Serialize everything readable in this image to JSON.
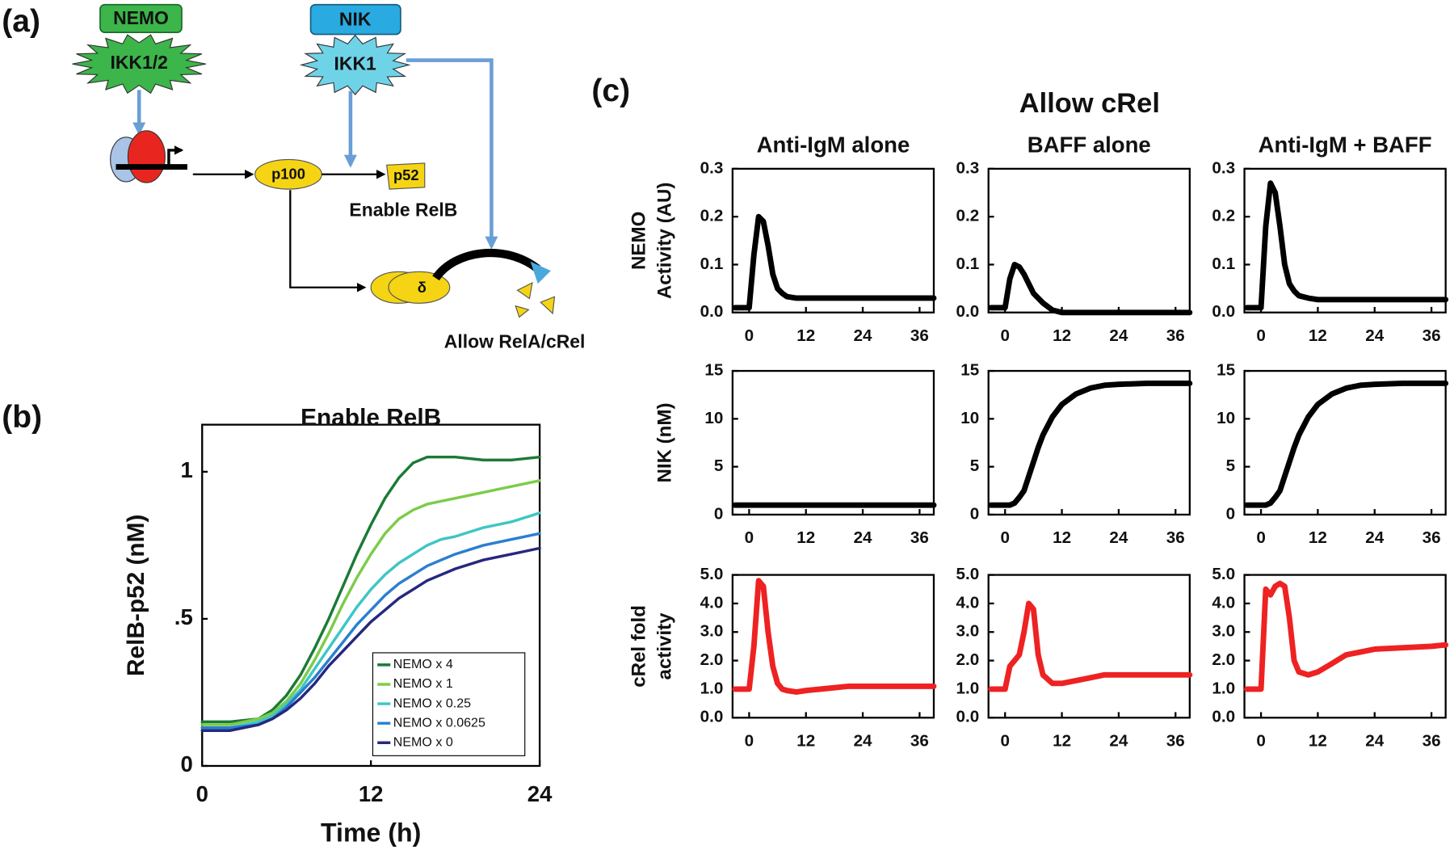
{
  "figure": {
    "panel_labels": [
      "(a)",
      "(b)",
      "(c)"
    ],
    "suptitle": "Allow cRel"
  },
  "diagram": {
    "labels": {
      "nemo": "NEMO",
      "ikk12": "IKK1/2",
      "nik": "NIK",
      "ikk1": "IKK1",
      "p100": "p100",
      "p52": "p52",
      "enable": "Enable RelB",
      "delta": "δ",
      "allow": "Allow RelA/cRel"
    }
  },
  "chart_data": [
    {
      "type": "line",
      "title": "Enable RelB",
      "xlabel": "Time (h)",
      "ylabel": "RelB-p52 (nM)",
      "legend": "lower right",
      "x": [
        0,
        2,
        4,
        5,
        6,
        7,
        8,
        9,
        10,
        11,
        12,
        13,
        14,
        15,
        16,
        17,
        18,
        20,
        22,
        24
      ],
      "xlim": [
        0,
        24
      ],
      "xticks": [
        0,
        12,
        24
      ],
      "ylim": [
        0,
        1.16
      ],
      "yticks": [
        0,
        {
          "value": 0.5,
          "label": ".5"
        },
        1
      ],
      "series": [
        {
          "name": "NEMO x 4",
          "color": "#1b7a35",
          "values": [
            0.15,
            0.15,
            0.16,
            0.19,
            0.24,
            0.31,
            0.4,
            0.5,
            0.61,
            0.72,
            0.82,
            0.91,
            0.98,
            1.03,
            1.05,
            1.05,
            1.05,
            1.04,
            1.04,
            1.05
          ]
        },
        {
          "name": "NEMO x 1",
          "color": "#7ccc4a",
          "values": [
            0.14,
            0.14,
            0.16,
            0.18,
            0.22,
            0.28,
            0.36,
            0.45,
            0.55,
            0.64,
            0.72,
            0.79,
            0.84,
            0.87,
            0.89,
            0.9,
            0.91,
            0.93,
            0.95,
            0.97
          ]
        },
        {
          "name": "NEMO x 0.25",
          "color": "#3ec6c6",
          "values": [
            0.13,
            0.13,
            0.15,
            0.17,
            0.21,
            0.26,
            0.33,
            0.4,
            0.47,
            0.54,
            0.6,
            0.65,
            0.69,
            0.72,
            0.75,
            0.77,
            0.78,
            0.81,
            0.83,
            0.86
          ]
        },
        {
          "name": "NEMO x 0.0625",
          "color": "#2a7fd0",
          "values": [
            0.13,
            0.13,
            0.14,
            0.16,
            0.2,
            0.25,
            0.3,
            0.36,
            0.42,
            0.48,
            0.53,
            0.58,
            0.62,
            0.65,
            0.68,
            0.7,
            0.72,
            0.75,
            0.77,
            0.79
          ]
        },
        {
          "name": "NEMO x 0",
          "color": "#26287e",
          "values": [
            0.12,
            0.12,
            0.14,
            0.16,
            0.19,
            0.23,
            0.28,
            0.34,
            0.39,
            0.44,
            0.49,
            0.53,
            0.57,
            0.6,
            0.63,
            0.65,
            0.67,
            0.7,
            0.72,
            0.74
          ]
        }
      ]
    },
    {
      "type": "line",
      "title": "Anti-IgM alone",
      "ylabel": [
        "NEMO",
        "Activity (AU)"
      ],
      "color": "#000000",
      "x": [
        -3,
        0,
        1,
        2,
        3,
        4,
        5,
        6,
        7,
        8,
        10,
        12,
        15,
        18,
        21,
        24,
        30,
        36,
        39
      ],
      "values": [
        0.01,
        0.01,
        0.12,
        0.2,
        0.19,
        0.14,
        0.08,
        0.05,
        0.04,
        0.033,
        0.03,
        0.03,
        0.03,
        0.03,
        0.03,
        0.03,
        0.03,
        0.03,
        0.03
      ],
      "xlim": [
        -3.5,
        39
      ],
      "xticks": [
        0,
        12,
        24,
        36
      ],
      "ylim": [
        0,
        0.3
      ],
      "yticks": [
        {
          "value": 0,
          "label": "0.0"
        },
        0.1,
        0.2,
        0.3
      ]
    },
    {
      "type": "line",
      "title": "BAFF alone",
      "color": "#000000",
      "x": [
        -3,
        0,
        1,
        2,
        3,
        4,
        5,
        6,
        7,
        8,
        10,
        12,
        15,
        18,
        21,
        24,
        30,
        36,
        39
      ],
      "values": [
        0.01,
        0.01,
        0.07,
        0.1,
        0.095,
        0.08,
        0.06,
        0.04,
        0.03,
        0.02,
        0.005,
        0,
        0,
        0,
        0,
        0,
        0,
        0,
        0
      ],
      "xlim": [
        -3.5,
        39
      ],
      "xticks": [
        0,
        12,
        24,
        36
      ],
      "ylim": [
        0,
        0.3
      ],
      "yticks": [
        {
          "value": 0,
          "label": "0.0"
        },
        0.1,
        0.2,
        0.3
      ]
    },
    {
      "type": "line",
      "title": "Anti-IgM + BAFF",
      "color": "#000000",
      "x": [
        -3,
        0,
        1,
        2,
        3,
        4,
        5,
        6,
        7,
        8,
        10,
        12,
        15,
        18,
        21,
        24,
        30,
        36,
        39
      ],
      "values": [
        0.01,
        0.01,
        0.18,
        0.27,
        0.25,
        0.18,
        0.1,
        0.06,
        0.045,
        0.035,
        0.03,
        0.027,
        0.027,
        0.027,
        0.027,
        0.027,
        0.027,
        0.027,
        0.027
      ],
      "xlim": [
        -3.5,
        39
      ],
      "xticks": [
        0,
        12,
        24,
        36
      ],
      "ylim": [
        0,
        0.3
      ],
      "yticks": [
        {
          "value": 0,
          "label": "0.0"
        },
        0.1,
        0.2,
        0.3
      ]
    },
    {
      "type": "line",
      "ylabel": [
        "NIK (nM)"
      ],
      "color": "#000000",
      "x": [
        -3,
        0,
        1,
        2,
        3,
        4,
        5,
        6,
        7,
        8,
        10,
        12,
        15,
        18,
        21,
        24,
        30,
        36,
        39
      ],
      "values": [
        1,
        1,
        1,
        1,
        1,
        1,
        1,
        1,
        1,
        1,
        1,
        1,
        1,
        1,
        1,
        1,
        1,
        1,
        1
      ],
      "xlim": [
        -3.5,
        39
      ],
      "xticks": [
        0,
        12,
        24,
        36
      ],
      "ylim": [
        0,
        15
      ],
      "yticks": [
        0,
        5,
        10,
        15
      ]
    },
    {
      "type": "line",
      "color": "#000000",
      "x": [
        -3,
        0,
        1,
        2,
        3,
        4,
        5,
        6,
        7,
        8,
        10,
        12,
        15,
        18,
        21,
        24,
        30,
        36,
        39
      ],
      "values": [
        1,
        1,
        1,
        1.2,
        1.8,
        2.5,
        4,
        5.5,
        7,
        8.3,
        10.2,
        11.5,
        12.6,
        13.2,
        13.5,
        13.6,
        13.7,
        13.7,
        13.7
      ],
      "xlim": [
        -3.5,
        39
      ],
      "xticks": [
        0,
        12,
        24,
        36
      ],
      "ylim": [
        0,
        15
      ],
      "yticks": [
        0,
        5,
        10,
        15
      ]
    },
    {
      "type": "line",
      "color": "#000000",
      "x": [
        -3,
        0,
        1,
        2,
        3,
        4,
        5,
        6,
        7,
        8,
        10,
        12,
        15,
        18,
        21,
        24,
        30,
        36,
        39
      ],
      "values": [
        1,
        1,
        1,
        1.2,
        1.8,
        2.5,
        4,
        5.5,
        7,
        8.3,
        10.2,
        11.5,
        12.6,
        13.2,
        13.5,
        13.6,
        13.7,
        13.7,
        13.7
      ],
      "xlim": [
        -3.5,
        39
      ],
      "xticks": [
        0,
        12,
        24,
        36
      ],
      "ylim": [
        0,
        15
      ],
      "yticks": [
        0,
        5,
        10,
        15
      ]
    },
    {
      "type": "line",
      "ylabel": [
        "cRel fold",
        "activity"
      ],
      "color": "#ee2222",
      "x": [
        -3,
        0,
        1,
        2,
        3,
        4,
        5,
        6,
        7,
        8,
        10,
        12,
        15,
        18,
        21,
        24,
        30,
        36,
        39
      ],
      "values": [
        1,
        1,
        2.5,
        4.8,
        4.6,
        3,
        1.8,
        1.2,
        1,
        0.95,
        0.9,
        0.95,
        1,
        1.05,
        1.1,
        1.1,
        1.1,
        1.1,
        1.1
      ],
      "xlim": [
        -3.5,
        39
      ],
      "xticks": [
        0,
        12,
        24,
        36
      ],
      "ylim": [
        0,
        5
      ],
      "yticks": [
        {
          "value": 0,
          "label": "0.0"
        },
        {
          "value": 1,
          "label": "1.0"
        },
        {
          "value": 2,
          "label": "2.0"
        },
        {
          "value": 3,
          "label": "3.0"
        },
        {
          "value": 4,
          "label": "4.0"
        },
        {
          "value": 5,
          "label": "5.0"
        }
      ]
    },
    {
      "type": "line",
      "color": "#ee2222",
      "x": [
        -3,
        0,
        1,
        2,
        3,
        4,
        5,
        6,
        7,
        8,
        10,
        12,
        15,
        18,
        21,
        24,
        30,
        36,
        39
      ],
      "values": [
        1,
        1,
        1.8,
        2,
        2.2,
        3,
        4,
        3.8,
        2.2,
        1.5,
        1.2,
        1.2,
        1.3,
        1.4,
        1.5,
        1.5,
        1.5,
        1.5,
        1.5
      ],
      "xlim": [
        -3.5,
        39
      ],
      "xticks": [
        0,
        12,
        24,
        36
      ],
      "ylim": [
        0,
        5
      ],
      "yticks": [
        {
          "value": 0,
          "label": "0.0"
        },
        {
          "value": 1,
          "label": "1.0"
        },
        {
          "value": 2,
          "label": "2.0"
        },
        {
          "value": 3,
          "label": "3.0"
        },
        {
          "value": 4,
          "label": "4.0"
        },
        {
          "value": 5,
          "label": "5.0"
        }
      ]
    },
    {
      "type": "line",
      "color": "#ee2222",
      "x": [
        -3,
        0,
        1,
        2,
        3,
        4,
        5,
        6,
        7,
        8,
        10,
        12,
        15,
        18,
        21,
        24,
        30,
        36,
        39
      ],
      "values": [
        1,
        1,
        4.5,
        4.3,
        4.6,
        4.7,
        4.6,
        3.5,
        2,
        1.6,
        1.5,
        1.6,
        1.9,
        2.2,
        2.3,
        2.4,
        2.45,
        2.5,
        2.55
      ],
      "xlim": [
        -3.5,
        39
      ],
      "xticks": [
        0,
        12,
        24,
        36
      ],
      "ylim": [
        0,
        5
      ],
      "yticks": [
        {
          "value": 0,
          "label": "0.0"
        },
        {
          "value": 1,
          "label": "1.0"
        },
        {
          "value": 2,
          "label": "2.0"
        },
        {
          "value": 3,
          "label": "3.0"
        },
        {
          "value": 4,
          "label": "4.0"
        },
        {
          "value": 5,
          "label": "5.0"
        }
      ]
    }
  ]
}
